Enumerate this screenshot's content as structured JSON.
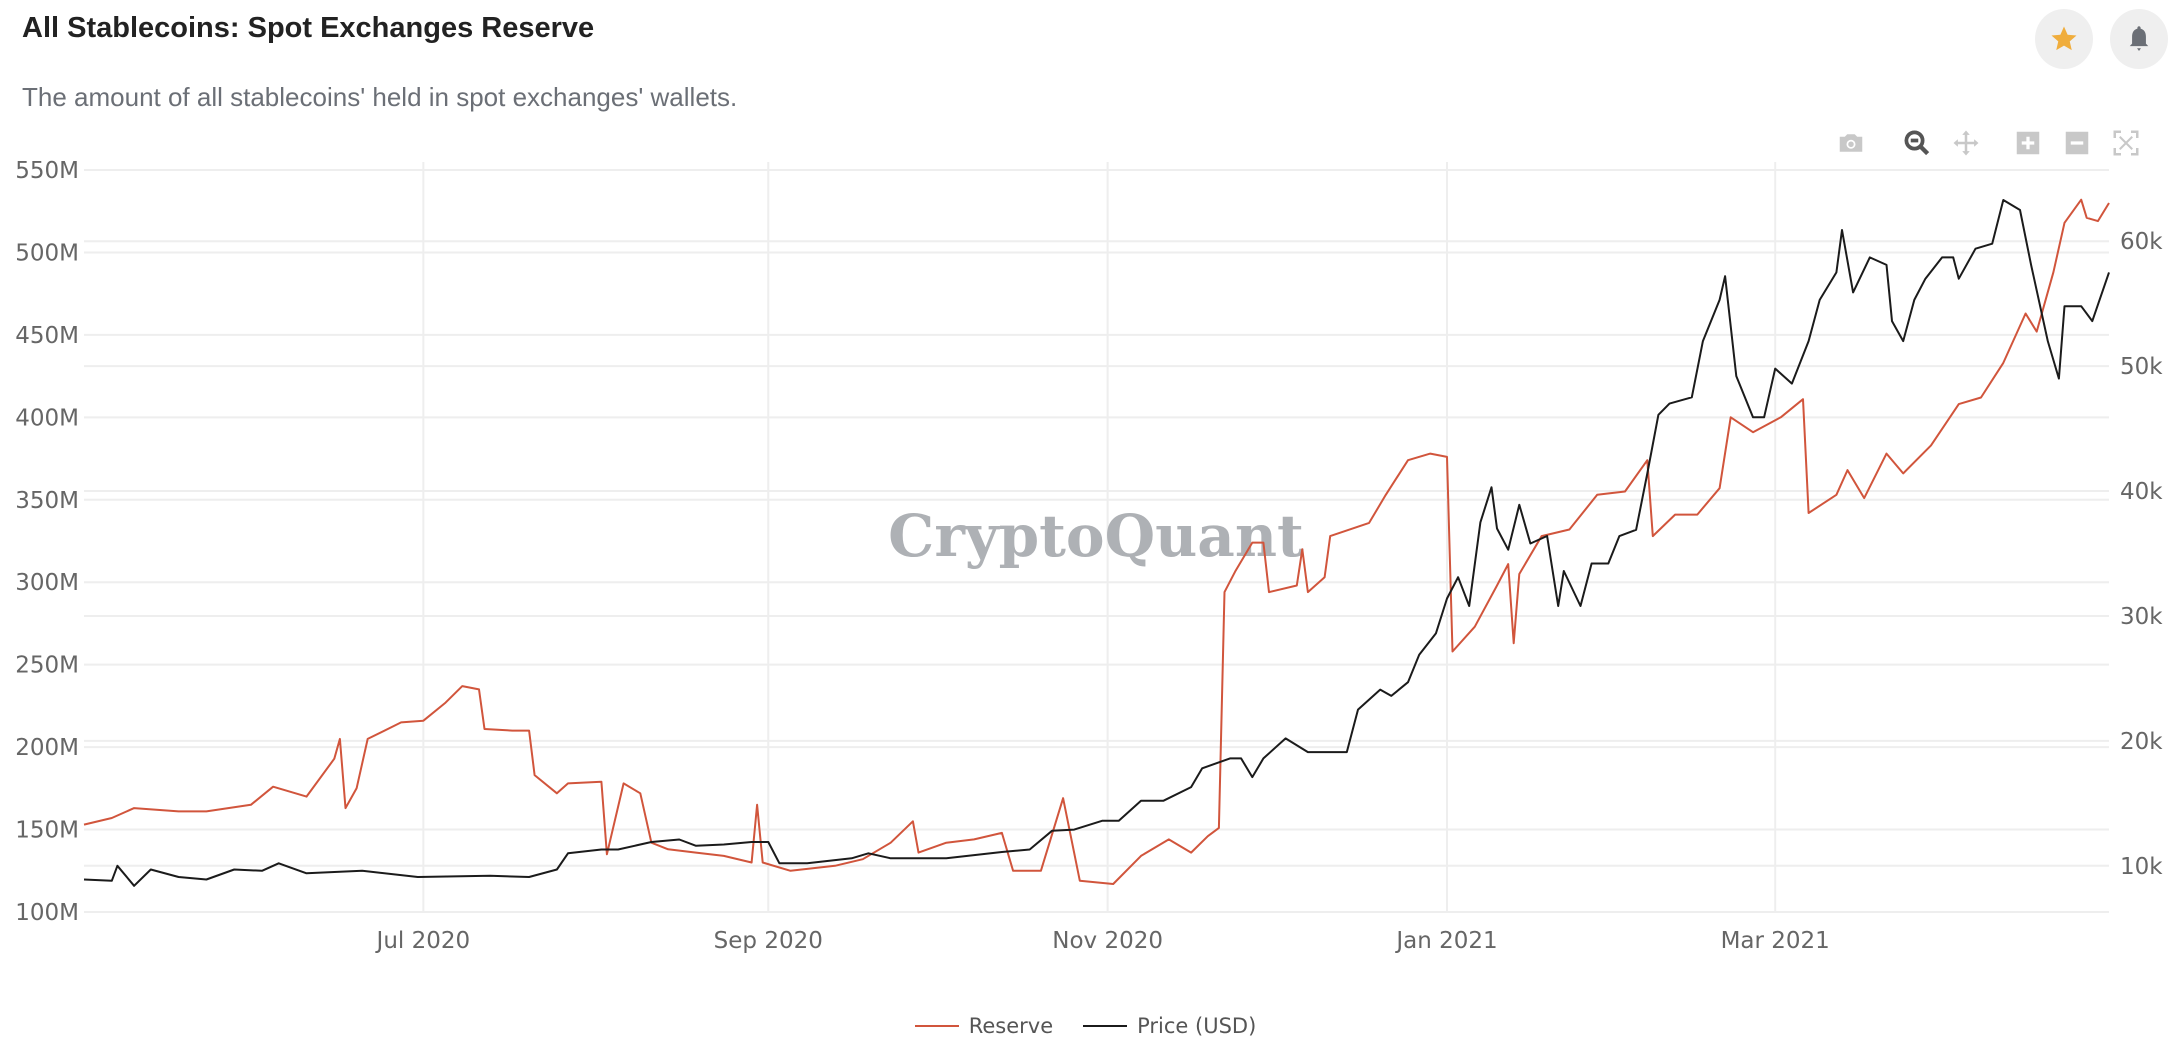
{
  "header": {
    "title": "All Stablecoins: Spot Exchanges Reserve",
    "subtitle": "The amount of all stablecoins' held in spot exchanges' wallets.",
    "favorite_icon": "star-icon",
    "alert_icon": "bell-icon"
  },
  "toolbar": {
    "icons": [
      "camera-icon",
      "zoom-icon",
      "pan-icon",
      "zoom-in-icon",
      "zoom-out-icon",
      "autoscale-icon"
    ]
  },
  "watermark": "CryptoQuant",
  "colors": {
    "reserve": "#d1553c",
    "price": "#1b1b1b",
    "grid": "#eeeeee",
    "star": "#f0ad3c"
  },
  "chart_data": {
    "type": "line",
    "title": "All Stablecoins: Spot Exchanges Reserve",
    "xlim": [
      "2020-05-01",
      "2021-04-30"
    ],
    "x_ticks": [
      {
        "date": "2020-07-01",
        "label": "Jul 2020"
      },
      {
        "date": "2020-09-01",
        "label": "Sep 2020"
      },
      {
        "date": "2020-11-01",
        "label": "Nov 2020"
      },
      {
        "date": "2021-01-01",
        "label": "Jan 2021"
      },
      {
        "date": "2021-03-01",
        "label": "Mar 2021"
      }
    ],
    "y_left": {
      "ylim": [
        100,
        550
      ],
      "ticks": [
        100,
        150,
        200,
        250,
        300,
        350,
        400,
        450,
        500,
        550
      ],
      "tick_labels": [
        "100M",
        "150M",
        "200M",
        "250M",
        "300M",
        "350M",
        "400M",
        "450M",
        "500M",
        "550M"
      ],
      "unit": "M"
    },
    "y_right": {
      "ylim": [
        6.3,
        65.7
      ],
      "ticks": [
        10,
        20,
        30,
        40,
        50,
        60
      ],
      "tick_labels": [
        "10k",
        "20k",
        "30k",
        "40k",
        "50k",
        "60k"
      ],
      "unit": "k"
    },
    "grid": true,
    "legend_position": "bottom-center",
    "series": [
      {
        "name": "Reserve",
        "axis": "left",
        "points": [
          [
            "2020-05-01",
            153
          ],
          [
            "2020-05-06",
            157
          ],
          [
            "2020-05-10",
            163
          ],
          [
            "2020-05-18",
            161
          ],
          [
            "2020-05-23",
            161
          ],
          [
            "2020-05-31",
            165
          ],
          [
            "2020-06-04",
            176
          ],
          [
            "2020-06-10",
            170
          ],
          [
            "2020-06-15",
            193
          ],
          [
            "2020-06-16",
            205
          ],
          [
            "2020-06-17",
            163
          ],
          [
            "2020-06-19",
            175
          ],
          [
            "2020-06-21",
            205
          ],
          [
            "2020-06-27",
            215
          ],
          [
            "2020-07-01",
            216
          ],
          [
            "2020-07-05",
            227
          ],
          [
            "2020-07-08",
            237
          ],
          [
            "2020-07-11",
            235
          ],
          [
            "2020-07-12",
            211
          ],
          [
            "2020-07-17",
            210
          ],
          [
            "2020-07-20",
            210
          ],
          [
            "2020-07-21",
            183
          ],
          [
            "2020-07-25",
            172
          ],
          [
            "2020-07-27",
            178
          ],
          [
            "2020-08-02",
            179
          ],
          [
            "2020-08-03",
            135
          ],
          [
            "2020-08-06",
            178
          ],
          [
            "2020-08-09",
            172
          ],
          [
            "2020-08-11",
            142
          ],
          [
            "2020-08-14",
            138
          ],
          [
            "2020-08-19",
            136
          ],
          [
            "2020-08-24",
            134
          ],
          [
            "2020-08-29",
            130
          ],
          [
            "2020-08-30",
            165
          ],
          [
            "2020-08-31",
            130
          ],
          [
            "2020-09-05",
            125
          ],
          [
            "2020-09-13",
            128
          ],
          [
            "2020-09-18",
            132
          ],
          [
            "2020-09-23",
            142
          ],
          [
            "2020-09-27",
            155
          ],
          [
            "2020-09-28",
            136
          ],
          [
            "2020-10-03",
            142
          ],
          [
            "2020-10-08",
            144
          ],
          [
            "2020-10-13",
            148
          ],
          [
            "2020-10-15",
            125
          ],
          [
            "2020-10-20",
            125
          ],
          [
            "2020-10-24",
            169
          ],
          [
            "2020-10-27",
            119
          ],
          [
            "2020-11-02",
            117
          ],
          [
            "2020-11-07",
            134
          ],
          [
            "2020-11-12",
            144
          ],
          [
            "2020-11-16",
            136
          ],
          [
            "2020-11-19",
            146
          ],
          [
            "2020-11-21",
            151
          ],
          [
            "2020-11-22",
            294
          ],
          [
            "2020-11-24",
            307
          ],
          [
            "2020-11-27",
            324
          ],
          [
            "2020-11-29",
            324
          ],
          [
            "2020-11-30",
            294
          ],
          [
            "2020-12-05",
            298
          ],
          [
            "2020-12-06",
            320
          ],
          [
            "2020-12-07",
            294
          ],
          [
            "2020-12-10",
            303
          ],
          [
            "2020-12-11",
            328
          ],
          [
            "2020-12-18",
            336
          ],
          [
            "2020-12-21",
            353
          ],
          [
            "2020-12-25",
            374
          ],
          [
            "2020-12-29",
            378
          ],
          [
            "2021-01-01",
            376
          ],
          [
            "2021-01-02",
            258
          ],
          [
            "2021-01-06",
            273
          ],
          [
            "2021-01-10",
            298
          ],
          [
            "2021-01-12",
            311
          ],
          [
            "2021-01-13",
            263
          ],
          [
            "2021-01-14",
            305
          ],
          [
            "2021-01-18",
            328
          ],
          [
            "2021-01-23",
            332
          ],
          [
            "2021-01-28",
            353
          ],
          [
            "2021-02-02",
            355
          ],
          [
            "2021-02-06",
            374
          ],
          [
            "2021-02-07",
            328
          ],
          [
            "2021-02-11",
            341
          ],
          [
            "2021-02-15",
            341
          ],
          [
            "2021-02-19",
            357
          ],
          [
            "2021-02-21",
            400
          ],
          [
            "2021-02-25",
            391
          ],
          [
            "2021-03-02",
            400
          ],
          [
            "2021-03-06",
            411
          ],
          [
            "2021-03-07",
            342
          ],
          [
            "2021-03-12",
            353
          ],
          [
            "2021-03-14",
            368
          ],
          [
            "2021-03-17",
            351
          ],
          [
            "2021-03-21",
            378
          ],
          [
            "2021-03-24",
            366
          ],
          [
            "2021-03-29",
            383
          ],
          [
            "2021-04-03",
            408
          ],
          [
            "2021-04-07",
            412
          ],
          [
            "2021-04-11",
            433
          ],
          [
            "2021-04-15",
            463
          ],
          [
            "2021-04-17",
            452
          ],
          [
            "2021-04-20",
            488
          ],
          [
            "2021-04-22",
            518
          ],
          [
            "2021-04-25",
            532
          ],
          [
            "2021-04-26",
            521
          ],
          [
            "2021-04-28",
            519
          ],
          [
            "2021-04-30",
            530
          ]
        ]
      },
      {
        "name": "Price (USD)",
        "axis": "right",
        "points": [
          [
            "2020-05-01",
            8.9
          ],
          [
            "2020-05-06",
            8.8
          ],
          [
            "2020-05-07",
            10.0
          ],
          [
            "2020-05-10",
            8.4
          ],
          [
            "2020-05-13",
            9.7
          ],
          [
            "2020-05-18",
            9.1
          ],
          [
            "2020-05-23",
            8.9
          ],
          [
            "2020-05-28",
            9.7
          ],
          [
            "2020-06-02",
            9.6
          ],
          [
            "2020-06-05",
            10.2
          ],
          [
            "2020-06-10",
            9.4
          ],
          [
            "2020-06-20",
            9.6
          ],
          [
            "2020-06-30",
            9.1
          ],
          [
            "2020-07-13",
            9.2
          ],
          [
            "2020-07-20",
            9.1
          ],
          [
            "2020-07-25",
            9.7
          ],
          [
            "2020-07-27",
            11.0
          ],
          [
            "2020-08-02",
            11.3
          ],
          [
            "2020-08-05",
            11.3
          ],
          [
            "2020-08-11",
            11.9
          ],
          [
            "2020-08-16",
            12.1
          ],
          [
            "2020-08-19",
            11.6
          ],
          [
            "2020-08-24",
            11.7
          ],
          [
            "2020-08-29",
            11.9
          ],
          [
            "2020-09-01",
            11.9
          ],
          [
            "2020-09-03",
            10.2
          ],
          [
            "2020-09-08",
            10.2
          ],
          [
            "2020-09-16",
            10.6
          ],
          [
            "2020-09-19",
            11.0
          ],
          [
            "2020-09-23",
            10.6
          ],
          [
            "2020-10-03",
            10.6
          ],
          [
            "2020-10-13",
            11.1
          ],
          [
            "2020-10-18",
            11.3
          ],
          [
            "2020-10-22",
            12.8
          ],
          [
            "2020-10-26",
            12.9
          ],
          [
            "2020-10-31",
            13.6
          ],
          [
            "2020-11-03",
            13.6
          ],
          [
            "2020-11-07",
            15.2
          ],
          [
            "2020-11-11",
            15.2
          ],
          [
            "2020-11-16",
            16.3
          ],
          [
            "2020-11-18",
            17.8
          ],
          [
            "2020-11-23",
            18.6
          ],
          [
            "2020-11-25",
            18.6
          ],
          [
            "2020-11-27",
            17.1
          ],
          [
            "2020-11-29",
            18.6
          ],
          [
            "2020-12-03",
            20.2
          ],
          [
            "2020-12-07",
            19.1
          ],
          [
            "2020-12-14",
            19.1
          ],
          [
            "2020-12-16",
            22.5
          ],
          [
            "2020-12-20",
            24.1
          ],
          [
            "2020-12-22",
            23.6
          ],
          [
            "2020-12-25",
            24.7
          ],
          [
            "2020-12-27",
            26.9
          ],
          [
            "2020-12-30",
            28.6
          ],
          [
            "2021-01-01",
            31.4
          ],
          [
            "2021-01-03",
            33.1
          ],
          [
            "2021-01-05",
            30.8
          ],
          [
            "2021-01-07",
            37.5
          ],
          [
            "2021-01-09",
            40.3
          ],
          [
            "2021-01-10",
            37.0
          ],
          [
            "2021-01-12",
            35.3
          ],
          [
            "2021-01-14",
            38.9
          ],
          [
            "2021-01-16",
            35.8
          ],
          [
            "2021-01-19",
            36.4
          ],
          [
            "2021-01-21",
            30.8
          ],
          [
            "2021-01-22",
            33.6
          ],
          [
            "2021-01-25",
            30.8
          ],
          [
            "2021-01-27",
            34.2
          ],
          [
            "2021-01-30",
            34.2
          ],
          [
            "2021-02-01",
            36.4
          ],
          [
            "2021-02-04",
            36.9
          ],
          [
            "2021-02-06",
            41.4
          ],
          [
            "2021-02-08",
            46.1
          ],
          [
            "2021-02-10",
            47.0
          ],
          [
            "2021-02-14",
            47.5
          ],
          [
            "2021-02-16",
            52.0
          ],
          [
            "2021-02-19",
            55.3
          ],
          [
            "2021-02-20",
            57.2
          ],
          [
            "2021-02-22",
            49.2
          ],
          [
            "2021-02-25",
            45.9
          ],
          [
            "2021-02-27",
            45.9
          ],
          [
            "2021-03-01",
            49.8
          ],
          [
            "2021-03-04",
            48.6
          ],
          [
            "2021-03-07",
            52.0
          ],
          [
            "2021-03-09",
            55.3
          ],
          [
            "2021-03-12",
            57.5
          ],
          [
            "2021-03-13",
            60.9
          ],
          [
            "2021-03-15",
            55.9
          ],
          [
            "2021-03-18",
            58.7
          ],
          [
            "2021-03-21",
            58.1
          ],
          [
            "2021-03-22",
            53.6
          ],
          [
            "2021-03-24",
            52.0
          ],
          [
            "2021-03-26",
            55.3
          ],
          [
            "2021-03-28",
            57.0
          ],
          [
            "2021-03-31",
            58.7
          ],
          [
            "2021-04-02",
            58.7
          ],
          [
            "2021-04-03",
            57.0
          ],
          [
            "2021-04-06",
            59.4
          ],
          [
            "2021-04-09",
            59.8
          ],
          [
            "2021-04-11",
            63.3
          ],
          [
            "2021-04-14",
            62.5
          ],
          [
            "2021-04-16",
            58.1
          ],
          [
            "2021-04-19",
            52.0
          ],
          [
            "2021-04-21",
            49.0
          ],
          [
            "2021-04-22",
            54.8
          ],
          [
            "2021-04-25",
            54.8
          ],
          [
            "2021-04-27",
            53.6
          ],
          [
            "2021-04-30",
            57.5
          ]
        ]
      }
    ]
  }
}
